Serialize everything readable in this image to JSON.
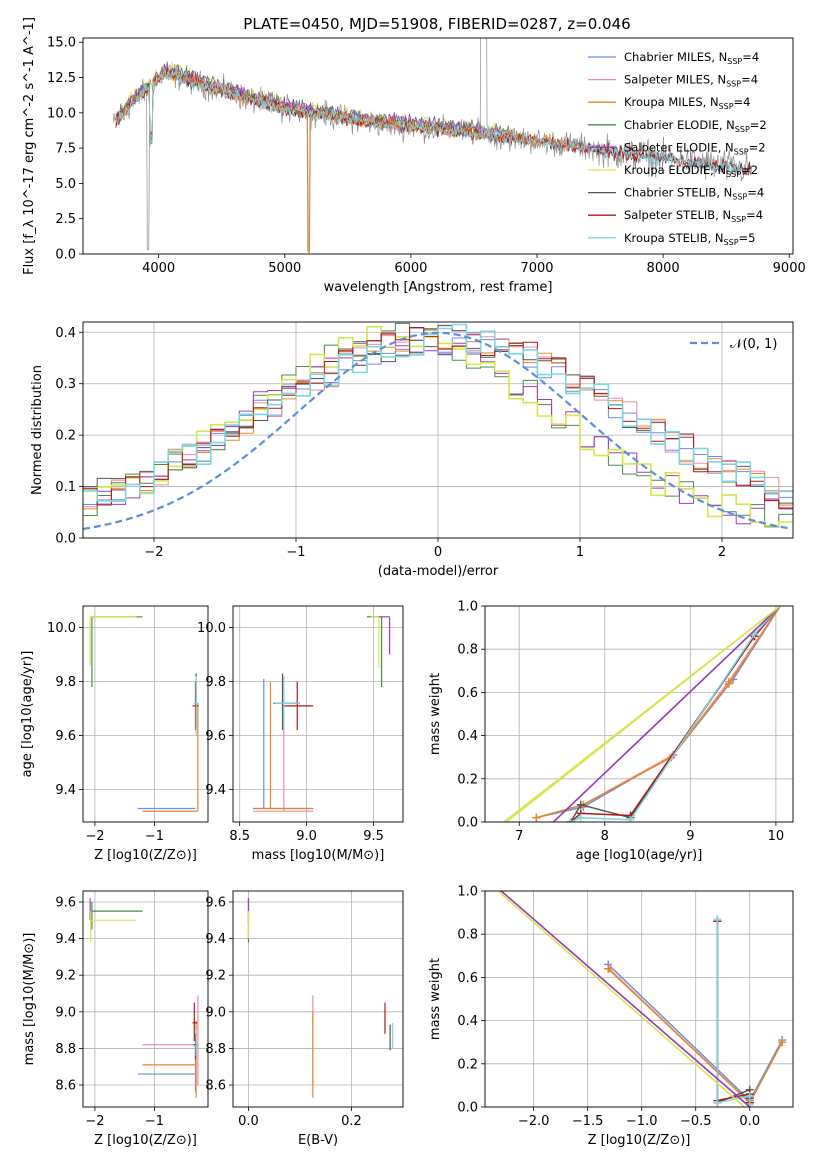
{
  "title": "PLATE=0450, MJD=51908, FIBERID=0287, z=0.046",
  "colors": {
    "Chabrier MILES": "#6a8de0",
    "Salpeter MILES": "#f08aa0",
    "Kroupa MILES": "#e08a2a",
    "Chabrier ELODIE": "#4a8a4a",
    "Salpeter ELODIE": "#a03ac0",
    "Kroupa ELODIE": "#d4e64a",
    "Chabrier STELIB": "#555555",
    "Salpeter STELIB": "#b01818",
    "Kroupa STELIB": "#7ad6e0",
    "data": "#8c8c8c",
    "gauss": "#5b8fdc"
  },
  "chart_data": [
    {
      "type": "line",
      "panel": "spectrum",
      "title": "PLATE=0450, MJD=51908, FIBERID=0287, z=0.046",
      "xlabel": "wavelength [Angstrom, rest frame]",
      "ylabel": "Flux [f_λ 10^-17 erg cm^-2 s^-1 A^-1]",
      "xlim": [
        3400,
        9030
      ],
      "ylim": [
        0,
        15.3
      ],
      "xticks": [
        4000,
        5000,
        6000,
        7000,
        8000,
        9000
      ],
      "yticks": [
        0.0,
        2.5,
        5.0,
        7.5,
        10.0,
        12.5,
        15.0
      ],
      "grid": false,
      "legend_position": "top-right",
      "legend": [
        "Chabrier MILES, N_SSP=4",
        "Salpeter MILES, N_SSP=4",
        "Kroupa MILES, N_SSP=4",
        "Chabrier ELODIE, N_SSP=2",
        "Salpeter ELODIE, N_SSP=2",
        "Kroupa ELODIE, N_SSP=2",
        "Chabrier STELIB, N_SSP=4",
        "Salpeter STELIB, N_SSP=4",
        "Kroupa STELIB, N_SSP=5"
      ],
      "continuum_x": [
        3650,
        3800,
        3950,
        4050,
        4150,
        4300,
        4500,
        4700,
        5000,
        5300,
        5600,
        6000,
        6400,
        6800,
        7200,
        7600,
        8000,
        8400,
        8800
      ],
      "continuum_y": [
        9.2,
        10.8,
        12.0,
        12.8,
        12.6,
        12.1,
        11.6,
        11.0,
        10.3,
        9.9,
        9.4,
        9.0,
        8.7,
        8.2,
        7.8,
        7.2,
        6.8,
        6.3,
        5.8
      ]
    },
    {
      "type": "line",
      "panel": "residual-histogram",
      "xlabel": "(data-model)/error",
      "ylabel": "Normed distribution",
      "xlim": [
        -2.5,
        2.5
      ],
      "ylim": [
        0,
        0.42
      ],
      "xticks": [
        -2,
        -1,
        0,
        1,
        2
      ],
      "yticks": [
        0.0,
        0.1,
        0.2,
        0.3,
        0.4
      ],
      "grid": true,
      "legend_position": "top-right",
      "legend": [
        "𝒩(0, 1)"
      ]
    },
    {
      "type": "scatter",
      "panel": "age-vs-Z",
      "xlabel": "Z [log10(Z/Z⊙)]",
      "ylabel": "age  [log10(age/yr)]",
      "xlim": [
        -2.2,
        -0.1
      ],
      "ylim": [
        9.28,
        10.08
      ],
      "xticks": [
        -2,
        -1
      ],
      "yticks": [
        9.4,
        9.6,
        9.8,
        10.0
      ],
      "grid": true
    },
    {
      "type": "scatter",
      "panel": "age-vs-mass",
      "xlabel": "mass [log10(M/M⊙)]",
      "ylabel": "",
      "xlim": [
        8.45,
        9.72
      ],
      "ylim": [
        9.28,
        10.08
      ],
      "xticks": [
        8.5,
        9.0,
        9.5
      ],
      "yticks": [
        9.4,
        9.6,
        9.8,
        10.0
      ],
      "grid": true
    },
    {
      "type": "line",
      "panel": "mass-weight-vs-age",
      "xlabel": "age  [log10(age/yr)]",
      "ylabel": "mass weight",
      "xlim": [
        6.6,
        10.2
      ],
      "ylim": [
        0,
        1.0
      ],
      "xticks": [
        7,
        8,
        9,
        10
      ],
      "yticks": [
        0.0,
        0.2,
        0.4,
        0.6,
        0.8,
        1.0
      ],
      "grid": true
    },
    {
      "type": "scatter",
      "panel": "mass-vs-Z",
      "xlabel": "Z [log10(Z/Z⊙)]",
      "ylabel": "mass [log10(M/M⊙)]",
      "xlim": [
        -2.2,
        -0.1
      ],
      "ylim": [
        8.48,
        9.66
      ],
      "xticks": [
        -2,
        -1
      ],
      "yticks": [
        8.6,
        8.8,
        9.0,
        9.2,
        9.4,
        9.6
      ],
      "grid": true
    },
    {
      "type": "scatter",
      "panel": "mass-vs-EBV",
      "xlabel": "E(B-V)",
      "ylabel": "",
      "xlim": [
        -0.03,
        0.3
      ],
      "ylim": [
        8.48,
        9.66
      ],
      "xticks": [
        0.0,
        0.2
      ],
      "yticks": [
        8.6,
        8.8,
        9.0,
        9.2,
        9.4,
        9.6
      ],
      "grid": true
    },
    {
      "type": "line",
      "panel": "mass-weight-vs-Z",
      "xlabel": "Z [log10(Z/Z⊙)]",
      "ylabel": "mass weight",
      "xlim": [
        -2.45,
        0.4
      ],
      "ylim": [
        0,
        1.0
      ],
      "xticks": [
        -2.0,
        -1.5,
        -1.0,
        -0.5,
        0.0
      ],
      "yticks": [
        0.0,
        0.2,
        0.4,
        0.6,
        0.8,
        1.0
      ],
      "grid": true
    }
  ]
}
